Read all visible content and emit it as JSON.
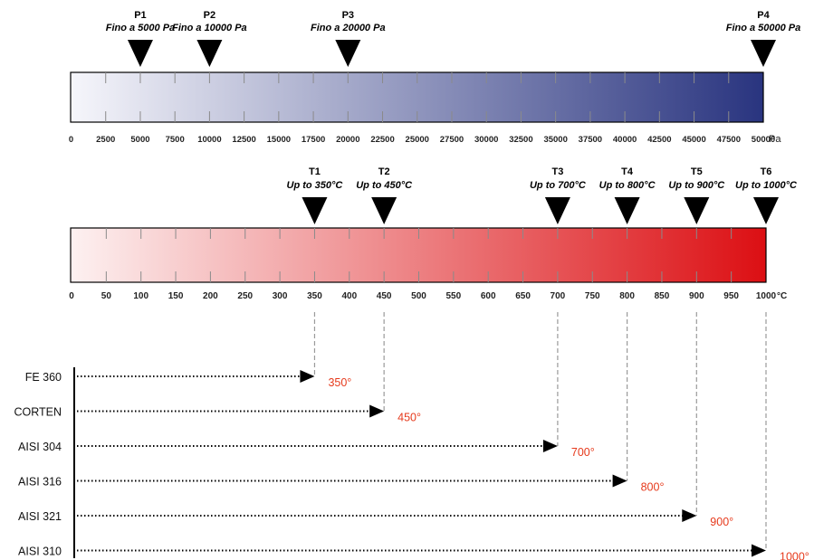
{
  "pressure_scale": {
    "markers": [
      {
        "id": "P1",
        "caption": "Fino a 5000 Pa",
        "value": 5000
      },
      {
        "id": "P2",
        "caption": "Fino a 10000 Pa",
        "value": 10000
      },
      {
        "id": "P3",
        "caption": "Fino a 20000 Pa",
        "value": 20000
      },
      {
        "id": "P4",
        "caption": "Fino a 50000 Pa",
        "value": 50000
      }
    ],
    "min": 0,
    "max": 50000,
    "step": 2500,
    "unit": "Pa",
    "colors": {
      "start": "#f6f6fb",
      "end": "#29347f"
    }
  },
  "temperature_scale": {
    "markers": [
      {
        "id": "T1",
        "caption": "Up to 350°C",
        "value": 350
      },
      {
        "id": "T2",
        "caption": "Up to 450°C",
        "value": 450
      },
      {
        "id": "T3",
        "caption": "Up to 700°C",
        "value": 700
      },
      {
        "id": "T4",
        "caption": "Up to 800°C",
        "value": 800
      },
      {
        "id": "T5",
        "caption": "Up to 900°C",
        "value": 900
      },
      {
        "id": "T6",
        "caption": "Up to 1000°C",
        "value": 1000
      }
    ],
    "min": 0,
    "max": 1000,
    "step": 50,
    "unit": "°C",
    "colors": {
      "start": "#fdf1f1",
      "end": "#dc0f13"
    }
  },
  "materials": [
    {
      "name": "FE 360",
      "value": 350,
      "label": "350°"
    },
    {
      "name": "CORTEN",
      "value": 450,
      "label": "450°"
    },
    {
      "name": "AISI 304",
      "value": 700,
      "label": "700°"
    },
    {
      "name": "AISI 316",
      "value": 800,
      "label": "800°"
    },
    {
      "name": "AISI 321",
      "value": 900,
      "label": "900°"
    },
    {
      "name": "AISI 310",
      "value": 1000,
      "label": "1000°"
    }
  ],
  "colors": {
    "marker": "#000000",
    "value_label": "#e63a1c",
    "guide": "#9a9a9a",
    "tick": "#8a8a8a"
  }
}
